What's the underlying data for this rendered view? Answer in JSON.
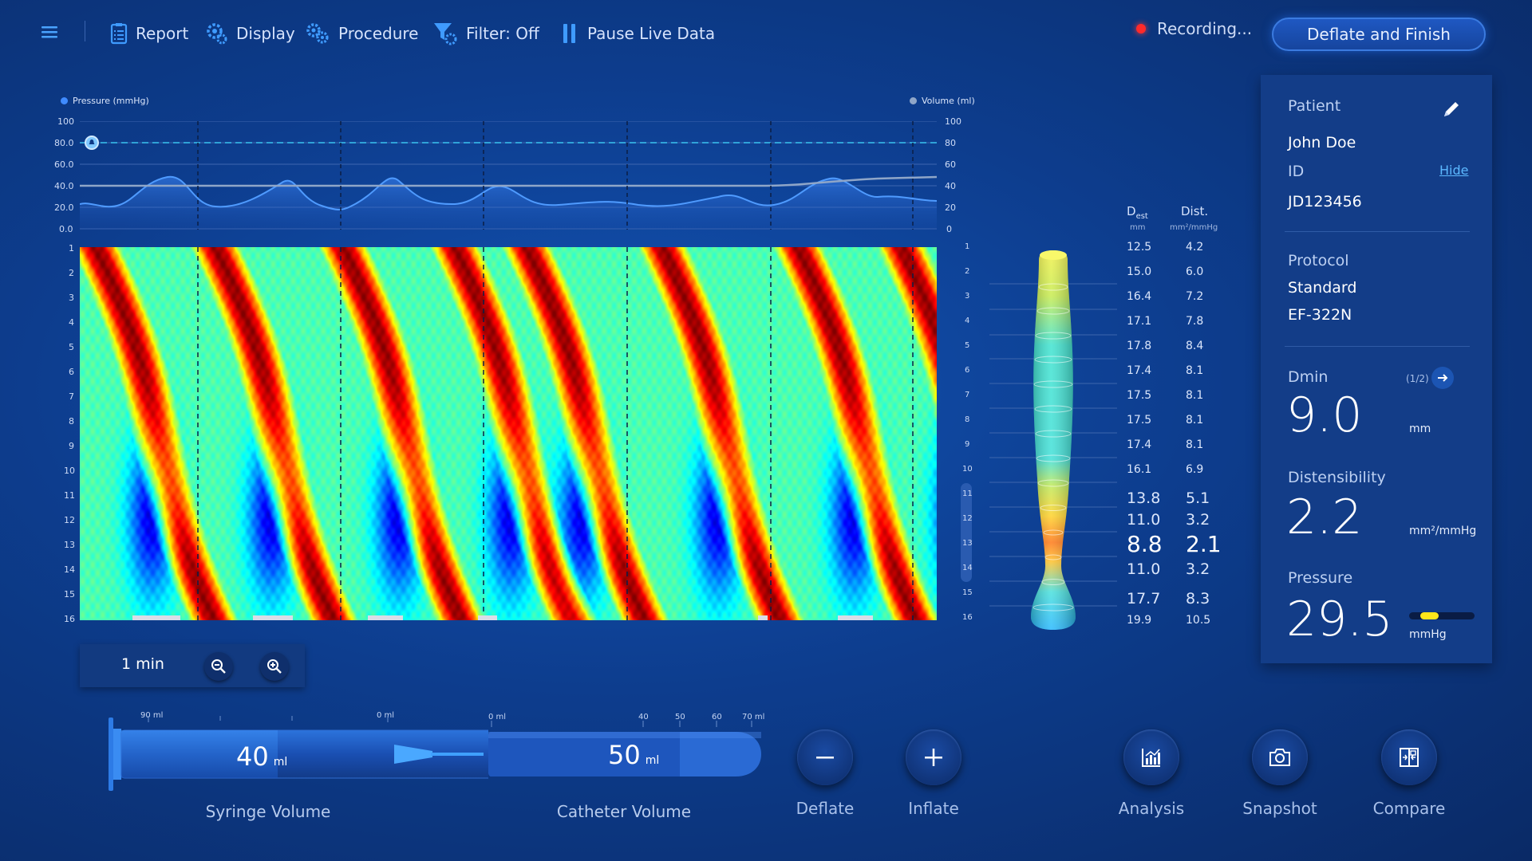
{
  "toolbar": {
    "report": "Report",
    "display": "Display",
    "procedure": "Procedure",
    "filter": "Filter: Off",
    "pause": "Pause Live Data",
    "recording": "Recording...",
    "finish": "Deflate and Finish"
  },
  "chart": {
    "legend_pressure": "Pressure (mmHg)",
    "legend_volume": "Volume (ml)",
    "pressure_ticks": [
      "100",
      "80.0",
      "60.0",
      "40.0",
      "20.0",
      "0.0"
    ],
    "volume_ticks": [
      "100",
      "80",
      "60",
      "40",
      "20",
      "0"
    ],
    "row_ticks": [
      "1",
      "2",
      "3",
      "4",
      "5",
      "6",
      "7",
      "8",
      "9",
      "10",
      "11",
      "12",
      "13",
      "14",
      "15",
      "16"
    ],
    "pressure_threshold": 80,
    "colors": {
      "pressure": "#3f8bff",
      "volume": "#8fa6c8",
      "threshold": "#3bc4f0"
    }
  },
  "zoom": {
    "label": "1 min"
  },
  "distensibility_table": {
    "col1_header": "D",
    "col1_sub": "est",
    "col1_unit": "mm",
    "col2_header": "Dist.",
    "col2_unit": "mm²/mmHg",
    "rows": [
      {
        "d": "12.5",
        "dist": "4.2"
      },
      {
        "d": "15.0",
        "dist": "6.0"
      },
      {
        "d": "16.4",
        "dist": "7.2"
      },
      {
        "d": "17.1",
        "dist": "7.8"
      },
      {
        "d": "17.8",
        "dist": "8.4"
      },
      {
        "d": "17.4",
        "dist": "8.1"
      },
      {
        "d": "17.5",
        "dist": "8.1"
      },
      {
        "d": "17.5",
        "dist": "8.1"
      },
      {
        "d": "17.4",
        "dist": "8.1"
      },
      {
        "d": "16.1",
        "dist": "6.9"
      },
      {
        "d": "13.8",
        "dist": "5.1"
      },
      {
        "d": "11.0",
        "dist": "3.2"
      },
      {
        "d": "8.8",
        "dist": "2.1"
      },
      {
        "d": "11.0",
        "dist": "3.2"
      },
      {
        "d": "17.7",
        "dist": "8.3"
      },
      {
        "d": "19.9",
        "dist": "10.5"
      }
    ]
  },
  "panel": {
    "patient_label": "Patient",
    "patient_name": "John Doe",
    "id_label": "ID",
    "hide_link": "Hide",
    "patient_id": "JD123456",
    "protocol_label": "Protocol",
    "protocol_name": "Standard",
    "protocol_code": "EF-322N",
    "dmin_label": "Dmin",
    "dmin_page": "(1/2)",
    "dmin_value": "9.0",
    "dmin_unit": "mm",
    "dist_label": "Distensibility",
    "dist_value": "2.2",
    "dist_unit": "mm²/mmHg",
    "pressure_label": "Pressure",
    "pressure_value": "29.5",
    "pressure_unit": "mmHg",
    "pressure_level": 0.28
  },
  "syringe": {
    "scale_left": "90 ml",
    "scale_right": "0 ml",
    "value": "40",
    "unit": "ml",
    "label": "Syringe Volume"
  },
  "catheter": {
    "scale": [
      "0 ml",
      "40",
      "50",
      "60",
      "70 ml"
    ],
    "value": "50",
    "unit": "ml",
    "label": "Catheter Volume"
  },
  "actions": {
    "deflate": "Deflate",
    "inflate": "Inflate",
    "analysis": "Analysis",
    "snapshot": "Snapshot",
    "compare": "Compare"
  }
}
